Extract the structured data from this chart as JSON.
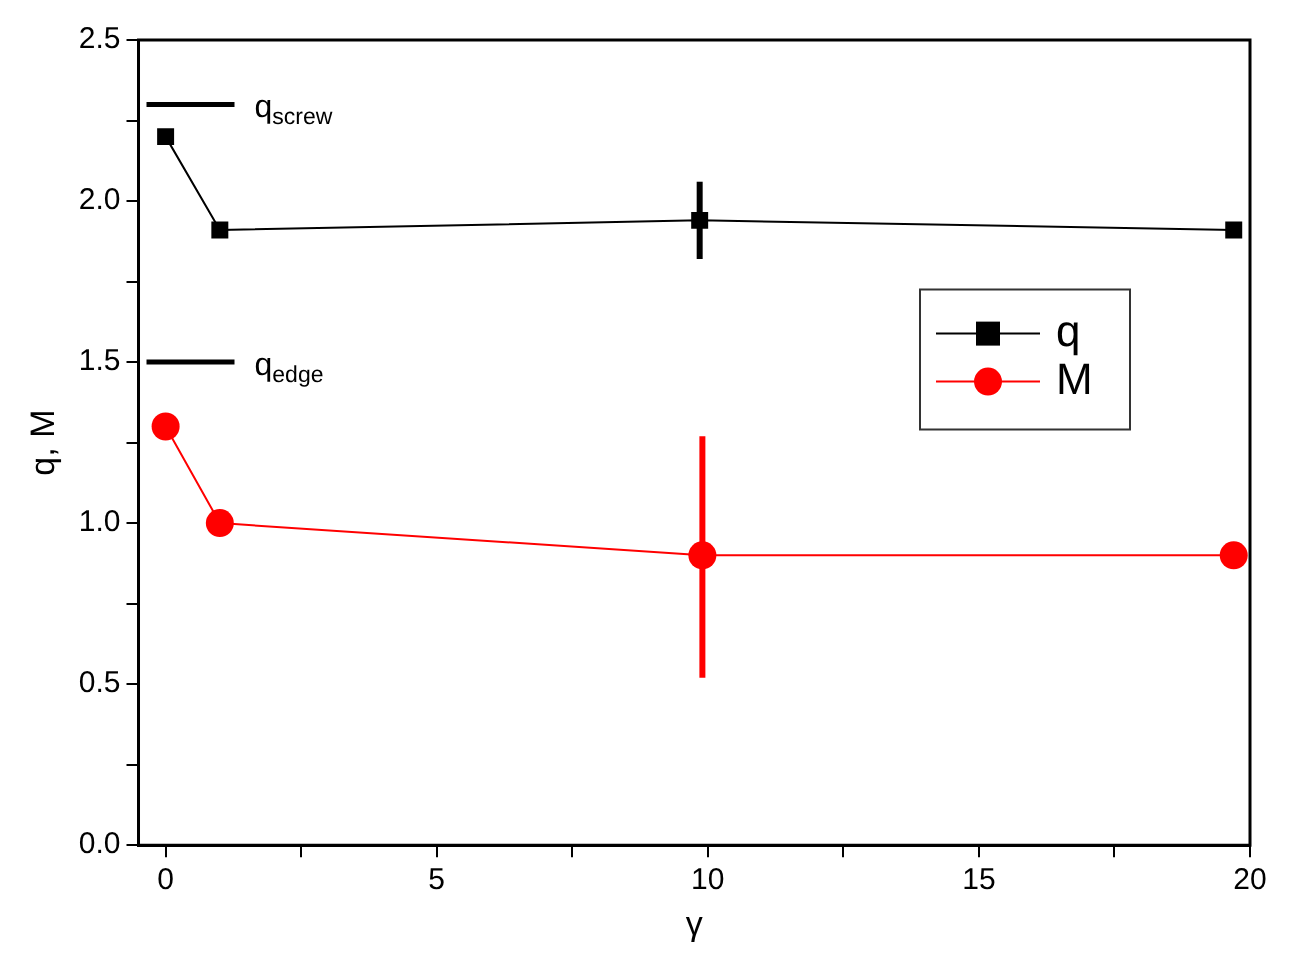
{
  "chart_data": {
    "type": "line",
    "xlabel": "γ",
    "ylabel": "q, M",
    "xlim": [
      -0.5,
      20
    ],
    "xticks": [
      0,
      {
        "value": 2.5,
        "label": null
      },
      5,
      {
        "value": 7.5,
        "label": null
      },
      10,
      {
        "value": 12.5,
        "label": null
      },
      15,
      {
        "value": 17.5,
        "label": null
      },
      20
    ],
    "ylim": [
      0,
      2.5
    ],
    "yticks": [
      {
        "value": 0,
        "label": "0.0"
      },
      {
        "value": 0.25,
        "label": null
      },
      {
        "value": 0.5,
        "label": "0.5"
      },
      {
        "value": 0.75,
        "label": null
      },
      {
        "value": 1.0,
        "label": "1.0"
      },
      {
        "value": 1.25,
        "label": null
      },
      1.5,
      {
        "value": 1.75,
        "label": null
      },
      {
        "value": 2.0,
        "label": "2.0"
      },
      {
        "value": 2.25,
        "label": null
      },
      2.5
    ],
    "grid": false,
    "legend": "right",
    "line_style": "solid",
    "series": [
      {
        "name": "q",
        "color": "#000000",
        "marker": "square",
        "x": [
          0,
          1,
          9.85,
          19.7
        ],
        "values": [
          2.2,
          1.91,
          1.94,
          1.91
        ],
        "errors": [
          null,
          null,
          [
            1.82,
            2.06
          ],
          null
        ]
      },
      {
        "name": "M",
        "color": "#ff0000",
        "marker": "circle",
        "x": [
          0,
          1,
          9.9,
          19.7
        ],
        "values": [
          1.3,
          1.0,
          0.9,
          0.9
        ],
        "errors": [
          null,
          null,
          [
            0.52,
            1.27
          ],
          null
        ]
      }
    ],
    "ref_lines": [
      {
        "axis": "y",
        "value": 2.3,
        "label": "q$_{screw}$",
        "color": "#000000"
      },
      {
        "axis": "y",
        "value": 1.5,
        "label": "q$_{edge}$",
        "color": "#000000"
      }
    ]
  }
}
